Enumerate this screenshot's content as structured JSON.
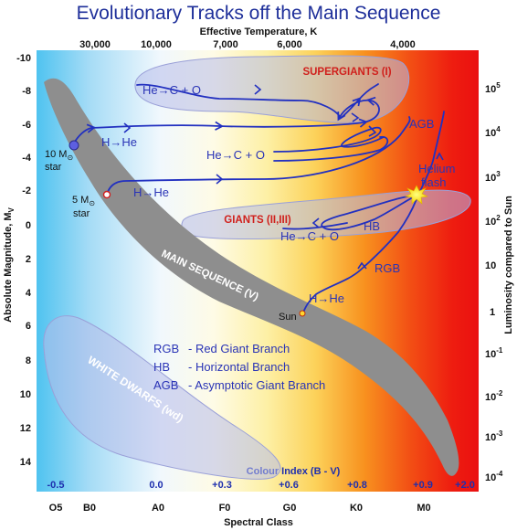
{
  "title": "Evolutionary Tracks off the Main Sequence",
  "top_axis": {
    "label": "Effective Temperature, K",
    "ticks": [
      "30,000",
      "10,000",
      "7,000",
      "6,000",
      "4,000"
    ]
  },
  "left_axis": {
    "label": "Absolute Magnitude, M",
    "label_sub": "V",
    "ticks": [
      "-10",
      "-8",
      "-6",
      "-4",
      "-2",
      "0",
      "2",
      "4",
      "6",
      "8",
      "10",
      "12",
      "14"
    ]
  },
  "right_axis": {
    "label": "Luminosity compared to Sun",
    "ticks": [
      {
        "base": "10",
        "exp": "5"
      },
      {
        "base": "10",
        "exp": "4"
      },
      {
        "base": "10",
        "exp": "3"
      },
      {
        "base": "10",
        "exp": "2"
      },
      {
        "base": "10",
        "exp": ""
      },
      {
        "base": "1",
        "exp": ""
      },
      {
        "base": "10",
        "exp": "-1"
      },
      {
        "base": "10",
        "exp": "-2"
      },
      {
        "base": "10",
        "exp": "-3"
      },
      {
        "base": "10",
        "exp": "-4"
      }
    ]
  },
  "bottom_axis": {
    "label": "Spectral Class",
    "ticks": [
      "O5",
      "B0",
      "A0",
      "F0",
      "G0",
      "K0",
      "M0"
    ]
  },
  "colour_index": {
    "label": "Colour Index (B - V)",
    "ticks": [
      "-0.5",
      "0.0",
      "+0.3",
      "+0.6",
      "+0.8",
      "+0.9",
      "+2.0"
    ]
  },
  "regions": {
    "supergiants": "SUPERGIANTS (I)",
    "giants": "GIANTS (II,III)",
    "main_sequence": "MAIN SEQUENCE (V)",
    "white_dwarfs": "WHITE DWARFS (wd)"
  },
  "tracks": {
    "he_c_o": "He→C + O",
    "h_he": "H→He",
    "agb": "AGB",
    "helium_flash_1": "Helium",
    "helium_flash_2": "flash",
    "hb": "HB",
    "rgb": "RGB"
  },
  "stars": {
    "ten_msun_value": "10 M",
    "five_msun_value": "5 M",
    "star_word": "star",
    "sun": "Sun",
    "sun_symbol": "⊙"
  },
  "legend": [
    {
      "abbr": "RGB",
      "desc": "- Red Giant Branch"
    },
    {
      "abbr": "HB",
      "desc": "- Horizontal Branch"
    },
    {
      "abbr": "AGB",
      "desc": "- Asymptotic Giant Branch"
    }
  ],
  "colors": {
    "track": "#2230c0",
    "title": "#1e2f9a",
    "main_sequence": "#8e8e8e",
    "region_label": "#d0201c"
  }
}
